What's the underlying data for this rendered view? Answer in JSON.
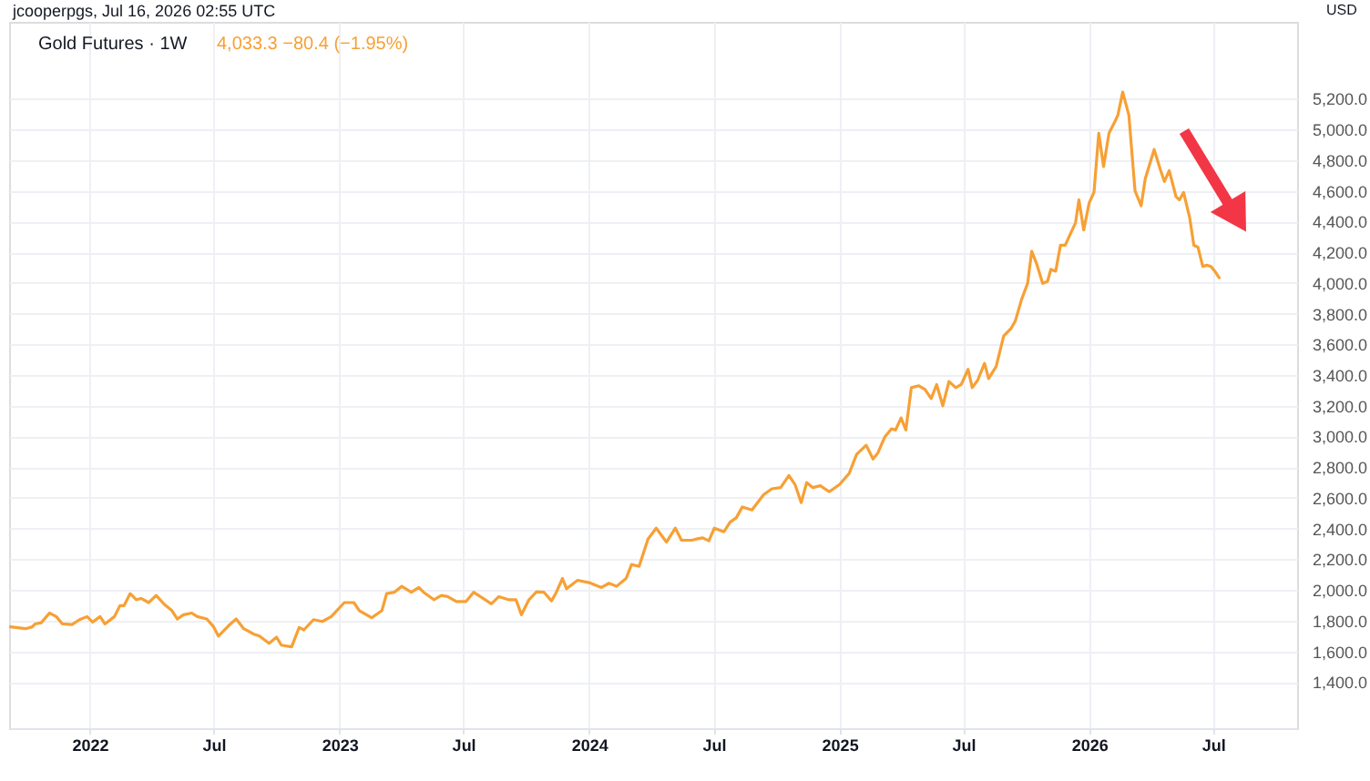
{
  "chart_data": {
    "type": "line",
    "title": "Gold Futures · 1W",
    "subtitle": "4,033.3 −80.4 (−1.95%)",
    "ylabel": "USD",
    "annotations": [
      "jcooperpgs, Jul 16, 2026 02:55 UTC"
    ],
    "x": [
      "2021-09-07",
      "2021-09-29",
      "2021-10-09",
      "2021-10-13",
      "2021-10-22",
      "2021-11-03",
      "2021-11-13",
      "2021-11-22",
      "2021-12-06",
      "2021-12-17",
      "2021-12-28",
      "2022-01-05",
      "2022-01-16",
      "2022-01-23",
      "2022-02-06",
      "2022-02-14",
      "2022-02-20",
      "2022-03-01",
      "2022-03-10",
      "2022-03-17",
      "2022-03-28",
      "2022-04-08",
      "2022-04-20",
      "2022-05-01",
      "2022-05-09",
      "2022-05-18",
      "2022-05-30",
      "2022-06-07",
      "2022-06-21",
      "2022-07-01",
      "2022-07-08",
      "2022-07-23",
      "2022-08-03",
      "2022-08-14",
      "2022-08-29",
      "2022-09-06",
      "2022-09-20",
      "2022-10-01",
      "2022-10-08",
      "2022-10-23",
      "2022-11-03",
      "2022-11-10",
      "2022-11-24",
      "2022-12-07",
      "2022-12-20",
      "2023-01-08",
      "2023-01-22",
      "2023-01-30",
      "2023-02-17",
      "2023-03-04",
      "2023-03-11",
      "2023-03-22",
      "2023-04-02",
      "2023-04-16",
      "2023-04-27",
      "2023-05-04",
      "2023-05-19",
      "2023-05-30",
      "2023-06-08",
      "2023-06-21",
      "2023-07-05",
      "2023-07-16",
      "2023-07-30",
      "2023-08-11",
      "2023-08-22",
      "2023-09-05",
      "2023-09-16",
      "2023-09-24",
      "2023-10-05",
      "2023-10-16",
      "2023-10-27",
      "2023-11-07",
      "2023-11-14",
      "2023-11-23",
      "2023-11-29",
      "2023-12-15",
      "2024-01-01",
      "2024-01-19",
      "2024-01-30",
      "2024-02-10",
      "2024-02-24",
      "2024-03-03",
      "2024-03-14",
      "2024-03-27",
      "2024-04-08",
      "2024-04-23",
      "2024-05-06",
      "2024-05-15",
      "2024-05-30",
      "2024-06-06",
      "2024-06-15",
      "2024-06-24",
      "2024-07-02",
      "2024-07-16",
      "2024-07-25",
      "2024-08-03",
      "2024-08-12",
      "2024-08-26",
      "2024-09-12",
      "2024-09-24",
      "2024-10-07",
      "2024-10-19",
      "2024-10-28",
      "2024-11-06",
      "2024-11-14",
      "2024-11-23",
      "2024-12-04",
      "2024-12-17",
      "2025-01-01",
      "2025-01-15",
      "2025-01-26",
      "2025-02-09",
      "2025-02-19",
      "2025-02-26",
      "2025-03-08",
      "2025-03-18",
      "2025-03-24",
      "2025-04-01",
      "2025-04-08",
      "2025-04-16",
      "2025-04-27",
      "2025-05-06",
      "2025-05-15",
      "2025-05-23",
      "2025-06-01",
      "2025-06-10",
      "2025-06-20",
      "2025-06-28",
      "2025-07-08",
      "2025-07-14",
      "2025-07-22",
      "2025-08-01",
      "2025-08-07",
      "2025-08-18",
      "2025-08-29",
      "2025-09-09",
      "2025-09-15",
      "2025-09-24",
      "2025-10-03",
      "2025-10-09",
      "2025-10-16",
      "2025-10-25",
      "2025-11-01",
      "2025-11-06",
      "2025-11-13",
      "2025-11-20",
      "2025-11-27",
      "2025-12-05",
      "2025-12-12",
      "2025-12-17",
      "2025-12-24",
      "2026-01-01",
      "2026-01-08",
      "2026-01-15",
      "2026-01-22",
      "2026-01-30",
      "2026-02-08",
      "2026-02-12",
      "2026-02-19",
      "2026-02-28",
      "2026-03-09",
      "2026-03-18",
      "2026-03-24",
      "2026-04-06",
      "2026-04-15",
      "2026-04-21",
      "2026-04-28",
      "2026-05-08",
      "2026-05-13",
      "2026-05-19",
      "2026-05-28",
      "2026-06-03",
      "2026-06-09",
      "2026-06-16",
      "2026-06-22",
      "2026-06-28",
      "2026-07-05",
      "2026-07-10"
    ],
    "series": [
      {
        "color": "#f7a035",
        "values": [
          1760,
          1748,
          1760,
          1779,
          1787,
          1850,
          1827,
          1779,
          1775,
          1807,
          1827,
          1791,
          1827,
          1779,
          1827,
          1898,
          1898,
          1977,
          1937,
          1945,
          1918,
          1965,
          1906,
          1866,
          1811,
          1839,
          1850,
          1827,
          1811,
          1760,
          1700,
          1768,
          1811,
          1748,
          1712,
          1700,
          1653,
          1693,
          1641,
          1630,
          1756,
          1740,
          1807,
          1795,
          1827,
          1918,
          1918,
          1866,
          1819,
          1866,
          1977,
          1985,
          2024,
          1985,
          2016,
          1985,
          1937,
          1965,
          1957,
          1925,
          1925,
          1985,
          1945,
          1910,
          1957,
          1937,
          1937,
          1839,
          1937,
          1988,
          1985,
          1929,
          1985,
          2075,
          2008,
          2063,
          2048,
          2016,
          2044,
          2024,
          2075,
          2166,
          2154,
          2332,
          2403,
          2312,
          2403,
          2324,
          2324,
          2332,
          2340,
          2320,
          2403,
          2379,
          2442,
          2470,
          2541,
          2521,
          2620,
          2659,
          2667,
          2746,
          2687,
          2569,
          2699,
          2667,
          2679,
          2640,
          2687,
          2758,
          2884,
          2943,
          2853,
          2892,
          2995,
          3050,
          3042,
          3121,
          3042,
          3318,
          3330,
          3306,
          3247,
          3338,
          3200,
          3358,
          3318,
          3338,
          3437,
          3318,
          3366,
          3476,
          3377,
          3456,
          3654,
          3705,
          3752,
          3890,
          3997,
          4206,
          4127,
          3997,
          4009,
          4088,
          4076,
          4245,
          4245,
          4324,
          4391,
          4541,
          4344,
          4521,
          4589,
          4975,
          4758,
          4975,
          5054,
          5093,
          5243,
          5093,
          4600,
          4502,
          4679,
          4869,
          4738,
          4660,
          4731,
          4561,
          4541,
          4589,
          4423,
          4245,
          4233,
          4107,
          4115,
          4107,
          4068,
          4033.3
        ]
      }
    ],
    "xlim": [
      "2021-09-05",
      "2026-11-01"
    ],
    "xticks": [
      {
        "value": "2022-01-01",
        "label": "2022"
      },
      {
        "value": "2022-07-01",
        "label": "Jul"
      },
      {
        "value": "2023-01-01",
        "label": "2023"
      },
      {
        "value": "2023-07-01",
        "label": "Jul"
      },
      {
        "value": "2024-01-01",
        "label": "2024"
      },
      {
        "value": "2024-07-01",
        "label": "Jul"
      },
      {
        "value": "2025-01-01",
        "label": "2025"
      },
      {
        "value": "2025-07-01",
        "label": "Jul"
      },
      {
        "value": "2026-01-01",
        "label": "2026"
      },
      {
        "value": "2026-07-01",
        "label": "Jul"
      }
    ],
    "ylim": [
      1100,
      5700
    ],
    "yticks": [
      {
        "value": 1400,
        "label": "1,400.0"
      },
      {
        "value": 1600,
        "label": "1,600.0"
      },
      {
        "value": 1800,
        "label": "1,800.0"
      },
      {
        "value": 2000,
        "label": "2,000.0"
      },
      {
        "value": 2200,
        "label": "2,200.0"
      },
      {
        "value": 2400,
        "label": "2,400.0"
      },
      {
        "value": 2600,
        "label": "2,600.0"
      },
      {
        "value": 2800,
        "label": "2,800.0"
      },
      {
        "value": 3000,
        "label": "3,000.0"
      },
      {
        "value": 3200,
        "label": "3,200.0"
      },
      {
        "value": 3400,
        "label": "3,400.0"
      },
      {
        "value": 3600,
        "label": "3,600.0"
      },
      {
        "value": 3800,
        "label": "3,800.0"
      },
      {
        "value": 4000,
        "label": "4,000.0"
      },
      {
        "value": 4200,
        "label": "4,200.0"
      },
      {
        "value": 4400,
        "label": "4,400.0"
      },
      {
        "value": 4600,
        "label": "4,600.0"
      },
      {
        "value": 4800,
        "label": "4,800.0"
      },
      {
        "value": 5000,
        "label": "5,000.0"
      },
      {
        "value": 5200,
        "label": "5,200.0"
      }
    ],
    "grid": true,
    "line_style": "solid"
  }
}
